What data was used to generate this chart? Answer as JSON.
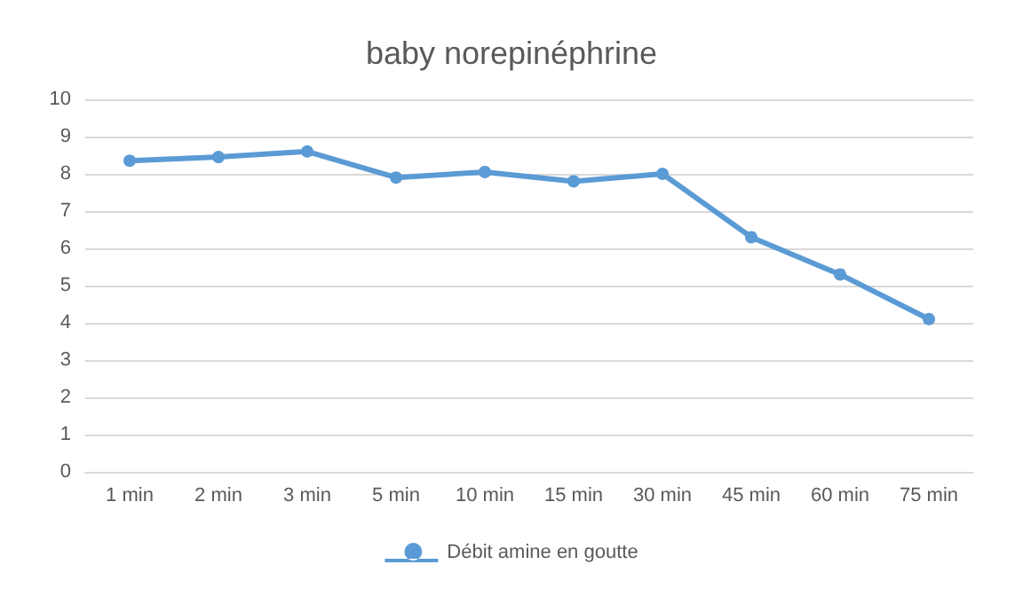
{
  "chart_data": {
    "type": "line",
    "title": "baby norepinéphrine",
    "categories": [
      "1 min",
      "2 min",
      "3 min",
      "5 min",
      "10 min",
      "15 min",
      "30 min",
      "45 min",
      "60 min",
      "75 min"
    ],
    "series": [
      {
        "name": "Débit amine en goutte",
        "color": "#5b9bd5",
        "values": [
          8.35,
          8.45,
          8.6,
          7.9,
          8.05,
          7.8,
          8.0,
          6.3,
          5.3,
          4.1
        ]
      }
    ],
    "ylim": [
      0,
      10
    ],
    "yticks": [
      0,
      1,
      2,
      3,
      4,
      5,
      6,
      7,
      8,
      9,
      10
    ],
    "grid": "y",
    "legend": "bottom",
    "marker": "circle",
    "line_style": "solid"
  }
}
